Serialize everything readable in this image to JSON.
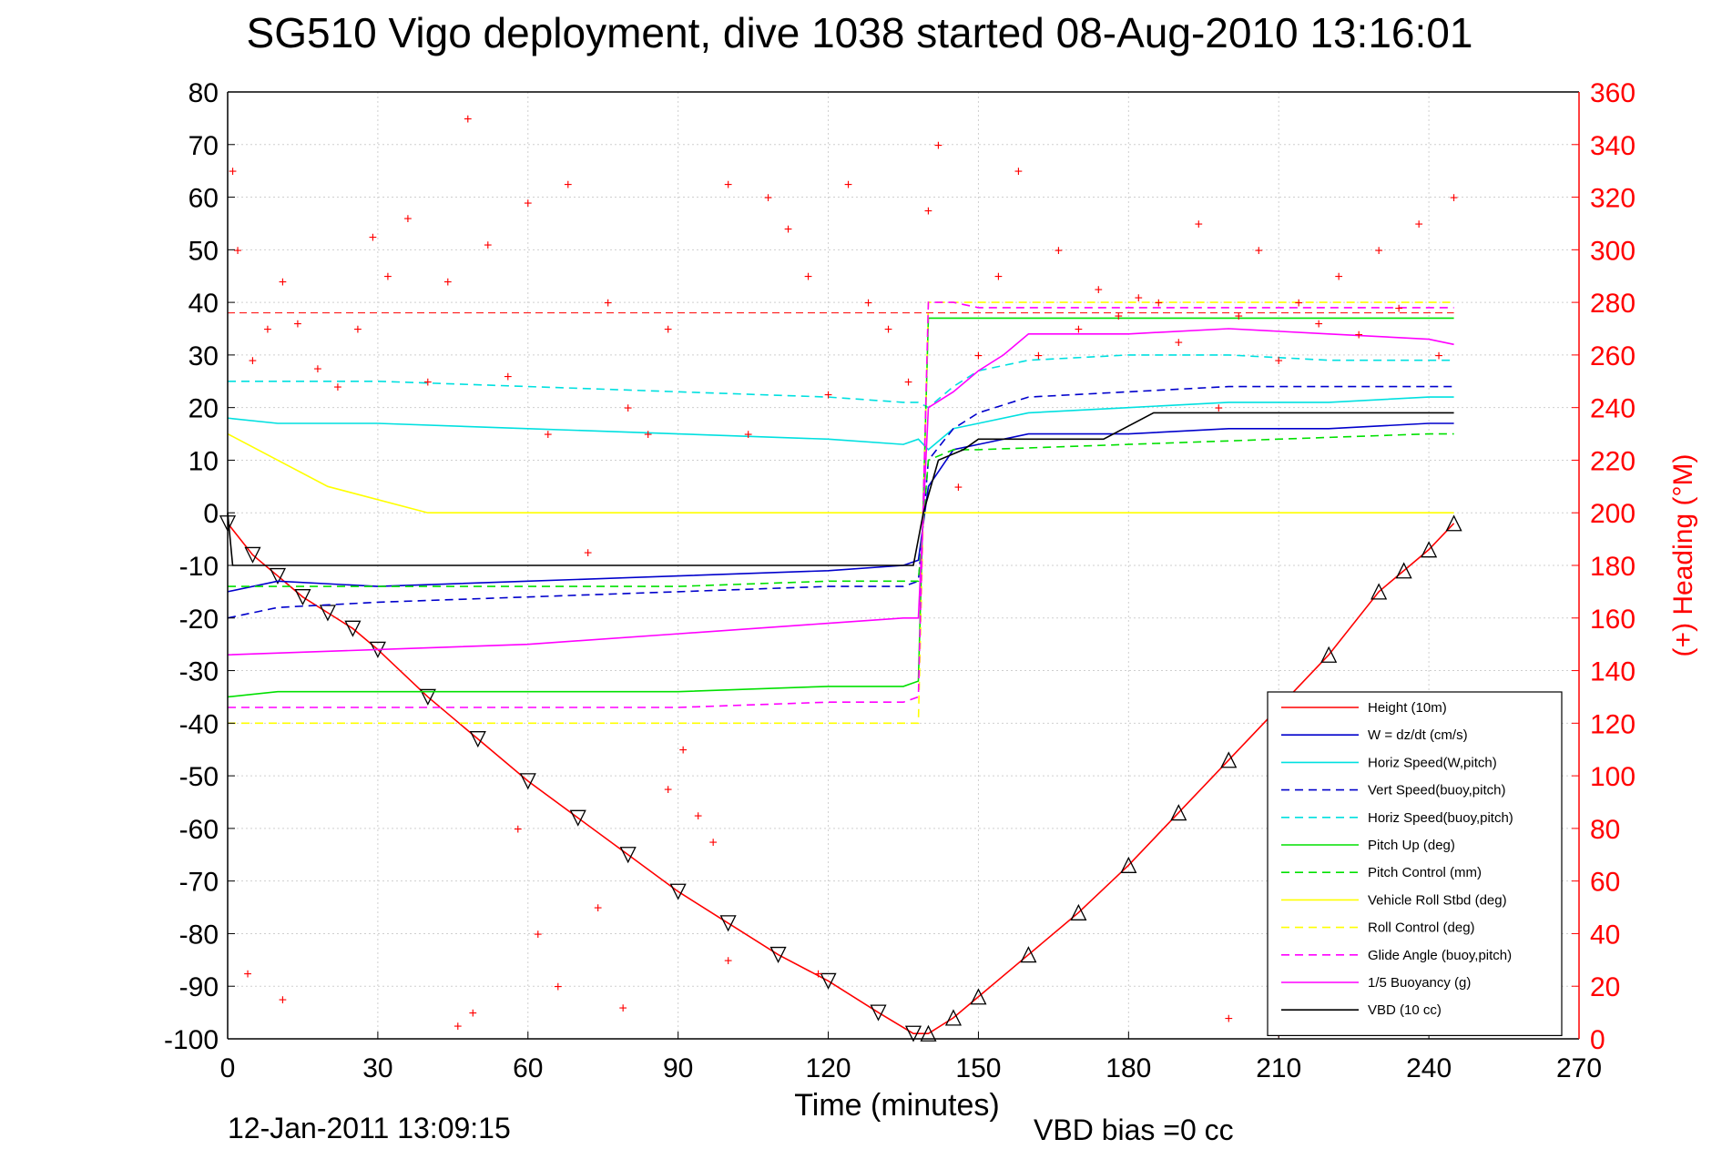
{
  "chart_data": {
    "type": "line",
    "title": "SG510 Vigo deployment, dive 1038 started 08-Aug-2010 13:16:01",
    "xlabel": "Time (minutes)",
    "ylabel": "",
    "ylabel_right": "(+) Heading (°M)",
    "xlim": [
      0,
      270
    ],
    "ylim": [
      -100,
      80
    ],
    "ylim_right": [
      0,
      360
    ],
    "xticks": [
      "0",
      "30",
      "60",
      "90",
      "120",
      "150",
      "180",
      "210",
      "240",
      "270"
    ],
    "yticks": [
      "80",
      "70",
      "60",
      "50",
      "40",
      "30",
      "20",
      "10",
      "0",
      "-10",
      "-20",
      "-30",
      "-40",
      "-50",
      "-60",
      "-70",
      "-80",
      "-90",
      "-100"
    ],
    "yticks_right": [
      "360",
      "340",
      "320",
      "300",
      "280",
      "260",
      "240",
      "220",
      "200",
      "180",
      "160",
      "140",
      "120",
      "100",
      "80",
      "60",
      "40",
      "20",
      "0"
    ],
    "grid": true,
    "legend_position": "bottom-right",
    "series": [
      {
        "name": "Height (10m)",
        "color": "#ff0000",
        "style": "solid-triangle-markers",
        "x": [
          0,
          5,
          10,
          15,
          20,
          25,
          30,
          40,
          50,
          60,
          70,
          80,
          90,
          100,
          110,
          120,
          130,
          137,
          140,
          145,
          150,
          160,
          170,
          180,
          190,
          200,
          210,
          220,
          230,
          235,
          240,
          245
        ],
        "values": [
          -2,
          -8,
          -12,
          -16,
          -19,
          -22,
          -26,
          -35,
          -43,
          -51,
          -58,
          -65,
          -72,
          -78,
          -84,
          -89,
          -95,
          -99,
          -99,
          -96,
          -92,
          -84,
          -76,
          -67,
          -57,
          -47,
          -37,
          -27,
          -15,
          -11,
          -7,
          -2
        ]
      },
      {
        "name": "W = dz/dt (cm/s)",
        "color": "#0000cc",
        "style": "solid",
        "x": [
          0,
          10,
          30,
          60,
          90,
          120,
          135,
          138,
          140,
          145,
          150,
          160,
          180,
          200,
          220,
          240,
          245
        ],
        "values": [
          -15,
          -13,
          -14,
          -13,
          -12,
          -11,
          -10,
          -9,
          5,
          12,
          13,
          15,
          15,
          16,
          16,
          17,
          17
        ]
      },
      {
        "name": "Horiz Speed(W,pitch)",
        "color": "#00e0e0",
        "style": "solid",
        "x": [
          0,
          10,
          30,
          60,
          90,
          120,
          135,
          138,
          140,
          145,
          150,
          160,
          180,
          200,
          220,
          240,
          245
        ],
        "values": [
          18,
          17,
          17,
          16,
          15,
          14,
          13,
          14,
          12,
          16,
          17,
          19,
          20,
          21,
          21,
          22,
          22
        ]
      },
      {
        "name": "Vert Speed(buoy,pitch)",
        "color": "#0000cc",
        "style": "dashed",
        "x": [
          0,
          10,
          30,
          60,
          90,
          120,
          135,
          138,
          140,
          145,
          150,
          160,
          180,
          200,
          220,
          240,
          245
        ],
        "values": [
          -20,
          -18,
          -17,
          -16,
          -15,
          -14,
          -14,
          -13,
          10,
          16,
          19,
          22,
          23,
          24,
          24,
          24,
          24
        ]
      },
      {
        "name": "Horiz Speed(buoy,pitch)",
        "color": "#00e0e0",
        "style": "dashed",
        "x": [
          0,
          10,
          30,
          60,
          90,
          120,
          135,
          138,
          140,
          145,
          150,
          160,
          180,
          200,
          220,
          240,
          245
        ],
        "values": [
          25,
          25,
          25,
          24,
          23,
          22,
          21,
          21,
          20,
          24,
          27,
          29,
          30,
          30,
          29,
          29,
          29
        ]
      },
      {
        "name": "Pitch Up (deg)",
        "color": "#00e000",
        "style": "solid",
        "x": [
          0,
          10,
          30,
          60,
          90,
          120,
          135,
          138,
          140,
          145,
          150,
          180,
          210,
          240,
          245
        ],
        "values": [
          -35,
          -34,
          -34,
          -34,
          -34,
          -33,
          -33,
          -32,
          37,
          37,
          37,
          37,
          37,
          37,
          37
        ]
      },
      {
        "name": "Pitch Control (mm)",
        "color": "#00e000",
        "style": "dashed",
        "x": [
          0,
          10,
          30,
          60,
          90,
          120,
          135,
          138,
          140,
          145,
          150,
          180,
          210,
          240,
          245
        ],
        "values": [
          -14,
          -14,
          -14,
          -14,
          -14,
          -13,
          -13,
          -13,
          10,
          12,
          12,
          13,
          14,
          15,
          15
        ]
      },
      {
        "name": "Vehicle Roll Stbd (deg)",
        "color": "#ffff00",
        "style": "solid",
        "x": [
          0,
          20,
          40,
          60,
          80,
          100,
          120,
          138,
          140,
          160,
          180,
          200,
          220,
          240,
          245
        ],
        "values": [
          15,
          5,
          0,
          0,
          0,
          0,
          0,
          0,
          0,
          0,
          0,
          0,
          0,
          0,
          0
        ]
      },
      {
        "name": "Roll Control (deg)",
        "color": "#ffff00",
        "style": "dashed",
        "x": [
          0,
          20,
          40,
          60,
          80,
          100,
          120,
          138,
          140,
          160,
          180,
          200,
          220,
          240,
          245
        ],
        "values": [
          -40,
          -40,
          -40,
          -40,
          -40,
          -40,
          -40,
          -40,
          40,
          40,
          40,
          40,
          40,
          40,
          40
        ]
      },
      {
        "name": "Glide Angle (buoy,pitch)",
        "color": "#ff00ff",
        "style": "dashed",
        "x": [
          0,
          10,
          30,
          60,
          90,
          120,
          135,
          138,
          140,
          145,
          150,
          180,
          210,
          240,
          245
        ],
        "values": [
          -37,
          -37,
          -37,
          -37,
          -37,
          -36,
          -36,
          -35,
          40,
          40,
          39,
          39,
          39,
          39,
          39
        ]
      },
      {
        "name": "1/5 Buoyancy (g)",
        "color": "#ff00ff",
        "style": "solid",
        "x": [
          0,
          30,
          60,
          90,
          120,
          135,
          138,
          140,
          145,
          150,
          155,
          160,
          180,
          200,
          220,
          240,
          245
        ],
        "values": [
          -27,
          -26,
          -25,
          -23,
          -21,
          -20,
          -20,
          20,
          23,
          27,
          30,
          34,
          34,
          35,
          34,
          33,
          32
        ]
      },
      {
        "name": "VBD (10 cc)",
        "color": "#000000",
        "style": "solid",
        "x": [
          0,
          1,
          137,
          139,
          142,
          147,
          150,
          175,
          185,
          210,
          245
        ],
        "values": [
          0,
          -10,
          -10,
          0,
          10,
          12,
          14,
          14,
          19,
          19,
          19
        ]
      }
    ],
    "heading_marker": {
      "symbol": "+",
      "color": "#ff0000",
      "axis": "right",
      "dashed_reference": 276
    },
    "heading_points": [
      [
        1,
        330
      ],
      [
        2,
        300
      ],
      [
        5,
        258
      ],
      [
        8,
        270
      ],
      [
        11,
        288
      ],
      [
        14,
        272
      ],
      [
        18,
        255
      ],
      [
        22,
        248
      ],
      [
        26,
        270
      ],
      [
        29,
        305
      ],
      [
        32,
        290
      ],
      [
        36,
        312
      ],
      [
        40,
        250
      ],
      [
        44,
        288
      ],
      [
        48,
        350
      ],
      [
        52,
        302
      ],
      [
        56,
        252
      ],
      [
        60,
        318
      ],
      [
        64,
        230
      ],
      [
        68,
        325
      ],
      [
        72,
        185
      ],
      [
        76,
        280
      ],
      [
        80,
        240
      ],
      [
        84,
        230
      ],
      [
        88,
        270
      ],
      [
        91,
        110
      ],
      [
        94,
        85
      ],
      [
        97,
        75
      ],
      [
        100,
        325
      ],
      [
        104,
        230
      ],
      [
        108,
        320
      ],
      [
        112,
        308
      ],
      [
        116,
        290
      ],
      [
        120,
        245
      ],
      [
        124,
        325
      ],
      [
        128,
        280
      ],
      [
        132,
        270
      ],
      [
        136,
        250
      ],
      [
        140,
        315
      ],
      [
        142,
        340
      ],
      [
        146,
        210
      ],
      [
        150,
        260
      ],
      [
        154,
        290
      ],
      [
        158,
        330
      ],
      [
        162,
        260
      ],
      [
        166,
        300
      ],
      [
        170,
        270
      ],
      [
        174,
        285
      ],
      [
        178,
        275
      ],
      [
        182,
        282
      ],
      [
        186,
        280
      ],
      [
        190,
        265
      ],
      [
        194,
        310
      ],
      [
        198,
        240
      ],
      [
        202,
        275
      ],
      [
        206,
        300
      ],
      [
        210,
        258
      ],
      [
        214,
        280
      ],
      [
        218,
        272
      ],
      [
        222,
        290
      ],
      [
        226,
        268
      ],
      [
        230,
        300
      ],
      [
        234,
        278
      ],
      [
        238,
        310
      ],
      [
        242,
        260
      ],
      [
        245,
        320
      ],
      [
        46,
        5
      ],
      [
        49,
        10
      ],
      [
        62,
        40
      ],
      [
        66,
        20
      ],
      [
        74,
        50
      ],
      [
        79,
        12
      ],
      [
        100,
        30
      ],
      [
        118,
        25
      ],
      [
        200,
        8
      ],
      [
        210,
        2
      ],
      [
        4,
        25
      ],
      [
        11,
        15
      ],
      [
        58,
        80
      ],
      [
        88,
        95
      ]
    ]
  },
  "footer": {
    "timestamp": "12-Jan-2011 13:09:15",
    "vbd_bias": "VBD bias =0 cc"
  }
}
